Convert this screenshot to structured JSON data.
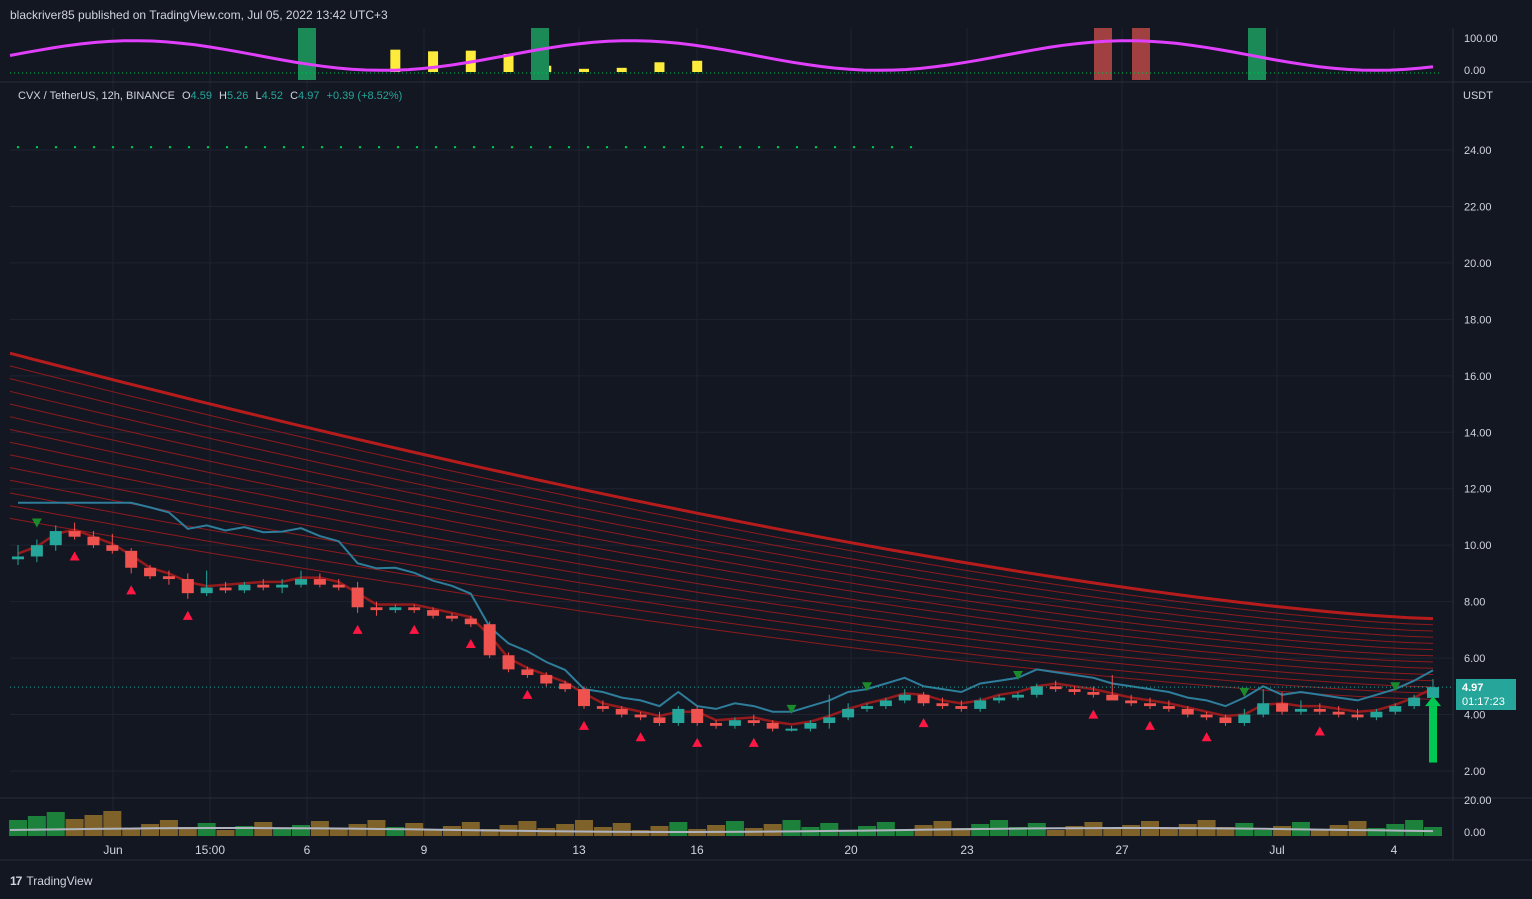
{
  "header": {
    "publisher_line": "blackriver85 published on TradingView.com, Jul 05, 2022 13:42 UTC+3"
  },
  "legend": {
    "symbol": "CVX / TetherUS, 12h, BINANCE",
    "open_label": "O",
    "open": "4.59",
    "high_label": "H",
    "high": "5.26",
    "low_label": "L",
    "low": "4.52",
    "close_label": "C",
    "close": "4.97",
    "change": "+0.39 (+8.52%)"
  },
  "price_axis": {
    "currency": "USDT",
    "ticks": [
      "24.00",
      "22.00",
      "20.00",
      "18.00",
      "16.00",
      "14.00",
      "12.00",
      "10.00",
      "8.00",
      "6.00",
      "4.00",
      "2.00"
    ],
    "last_price": "4.97",
    "countdown": "01:17:23"
  },
  "oscillator_axis": {
    "ticks": [
      "100.00",
      "0.00"
    ]
  },
  "volume_axis": {
    "ticks": [
      "20.00",
      "0.00"
    ]
  },
  "time_axis": {
    "ticks": [
      "Jun",
      "15:00",
      "6",
      "9",
      "13",
      "16",
      "20",
      "23",
      "27",
      "Jul",
      "4"
    ]
  },
  "footer": {
    "brand": "TradingView",
    "logo_glyph": "17"
  },
  "colors": {
    "background": "#131722",
    "up": "#26a69a",
    "down": "#ef5350",
    "ribbon": "#b71c1c",
    "signal_green": "#00c853",
    "signal_red": "#ff1744",
    "oscillator_magenta": "#e040fb",
    "oscillator_yellow": "#ffeb3b",
    "trend_blue": "#2e7d9a"
  },
  "chart_data": {
    "type": "candlestick",
    "timeframe": "12h",
    "ylim": [
      1.0,
      26.0
    ],
    "candles": [
      [
        9.5,
        10.0,
        9.3,
        9.6
      ],
      [
        9.6,
        10.2,
        9.4,
        10.0
      ],
      [
        10.0,
        10.7,
        9.8,
        10.5
      ],
      [
        10.5,
        10.8,
        10.2,
        10.3
      ],
      [
        10.3,
        10.5,
        9.9,
        10.0
      ],
      [
        10.0,
        10.4,
        9.7,
        9.8
      ],
      [
        9.8,
        9.9,
        9.0,
        9.2
      ],
      [
        9.2,
        9.3,
        8.8,
        8.9
      ],
      [
        8.9,
        9.1,
        8.6,
        8.8
      ],
      [
        8.8,
        9.0,
        8.1,
        8.3
      ],
      [
        8.3,
        9.1,
        8.2,
        8.5
      ],
      [
        8.5,
        8.7,
        8.3,
        8.4
      ],
      [
        8.4,
        8.7,
        8.3,
        8.6
      ],
      [
        8.6,
        8.8,
        8.4,
        8.5
      ],
      [
        8.5,
        8.8,
        8.3,
        8.6
      ],
      [
        8.6,
        9.1,
        8.5,
        8.8
      ],
      [
        8.8,
        9.0,
        8.5,
        8.6
      ],
      [
        8.6,
        8.8,
        8.4,
        8.5
      ],
      [
        8.5,
        8.7,
        7.6,
        7.8
      ],
      [
        7.8,
        8.0,
        7.5,
        7.7
      ],
      [
        7.7,
        7.9,
        7.6,
        7.8
      ],
      [
        7.8,
        7.9,
        7.6,
        7.7
      ],
      [
        7.7,
        7.8,
        7.4,
        7.5
      ],
      [
        7.5,
        7.6,
        7.3,
        7.4
      ],
      [
        7.4,
        7.5,
        7.1,
        7.2
      ],
      [
        7.2,
        7.3,
        6.0,
        6.1
      ],
      [
        6.1,
        6.2,
        5.5,
        5.6
      ],
      [
        5.6,
        5.7,
        5.3,
        5.4
      ],
      [
        5.4,
        5.5,
        5.0,
        5.1
      ],
      [
        5.1,
        5.2,
        4.8,
        4.9
      ],
      [
        4.9,
        5.0,
        4.2,
        4.3
      ],
      [
        4.3,
        4.5,
        4.1,
        4.2
      ],
      [
        4.2,
        4.3,
        3.9,
        4.0
      ],
      [
        4.0,
        4.1,
        3.8,
        3.9
      ],
      [
        3.9,
        4.1,
        3.6,
        3.7
      ],
      [
        3.7,
        4.3,
        3.6,
        4.2
      ],
      [
        4.2,
        4.3,
        3.6,
        3.7
      ],
      [
        3.7,
        3.8,
        3.5,
        3.6
      ],
      [
        3.6,
        3.9,
        3.5,
        3.8
      ],
      [
        3.8,
        4.0,
        3.6,
        3.7
      ],
      [
        3.7,
        3.8,
        3.4,
        3.5
      ],
      [
        3.5,
        3.6,
        3.4,
        3.5
      ],
      [
        3.5,
        3.8,
        3.4,
        3.7
      ],
      [
        3.7,
        4.7,
        3.5,
        3.9
      ],
      [
        3.9,
        4.4,
        3.8,
        4.2
      ],
      [
        4.2,
        4.4,
        4.1,
        4.3
      ],
      [
        4.3,
        4.6,
        4.2,
        4.5
      ],
      [
        4.5,
        4.9,
        4.4,
        4.7
      ],
      [
        4.7,
        4.8,
        4.3,
        4.4
      ],
      [
        4.4,
        4.6,
        4.2,
        4.3
      ],
      [
        4.3,
        4.5,
        4.1,
        4.2
      ],
      [
        4.2,
        4.6,
        4.1,
        4.5
      ],
      [
        4.5,
        4.7,
        4.4,
        4.6
      ],
      [
        4.6,
        4.8,
        4.5,
        4.7
      ],
      [
        4.7,
        5.1,
        4.6,
        5.0
      ],
      [
        5.0,
        5.2,
        4.8,
        4.9
      ],
      [
        4.9,
        5.0,
        4.7,
        4.8
      ],
      [
        4.8,
        5.0,
        4.6,
        4.7
      ],
      [
        4.7,
        5.4,
        4.6,
        4.5
      ],
      [
        4.5,
        4.7,
        4.3,
        4.4
      ],
      [
        4.4,
        4.6,
        4.2,
        4.3
      ],
      [
        4.3,
        4.5,
        4.1,
        4.2
      ],
      [
        4.2,
        4.3,
        3.9,
        4.0
      ],
      [
        4.0,
        4.1,
        3.8,
        3.9
      ],
      [
        3.9,
        4.0,
        3.6,
        3.7
      ],
      [
        3.7,
        4.2,
        3.6,
        4.0
      ],
      [
        4.0,
        4.9,
        3.9,
        4.4
      ],
      [
        4.4,
        4.8,
        4.0,
        4.1
      ],
      [
        4.1,
        4.5,
        4.0,
        4.2
      ],
      [
        4.2,
        4.4,
        4.0,
        4.1
      ],
      [
        4.1,
        4.3,
        3.9,
        4.0
      ],
      [
        4.0,
        4.2,
        3.8,
        3.9
      ],
      [
        3.9,
        4.2,
        3.8,
        4.1
      ],
      [
        4.1,
        4.4,
        4.0,
        4.3
      ],
      [
        4.3,
        4.7,
        4.2,
        4.6
      ],
      [
        4.59,
        5.26,
        4.52,
        4.97
      ]
    ]
  }
}
